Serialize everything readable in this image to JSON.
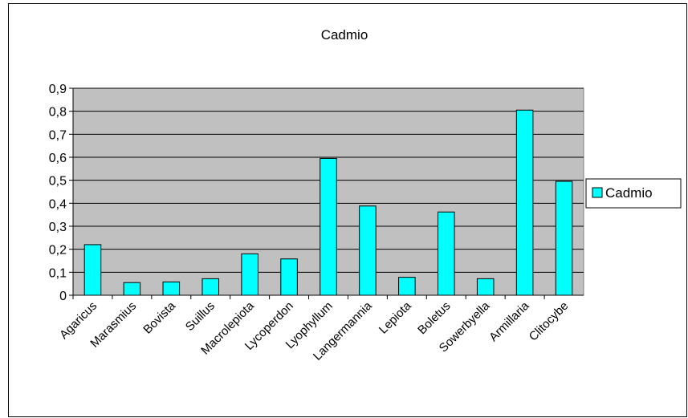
{
  "chart_data": {
    "type": "bar",
    "title": "Cadmio",
    "xlabel": "",
    "ylabel": "",
    "categories": [
      "Agaricus",
      "Marasmius",
      "Bovista",
      "Suillus",
      "Macrolepiota",
      "Lycoperdon",
      "Lyophyllum",
      "Langermannia",
      "Lepiota",
      "Boletus",
      "Sowerbyella",
      "Armillaria",
      "Clitocybe"
    ],
    "series": [
      {
        "name": "Cadmio",
        "values": [
          0.22,
          0.055,
          0.058,
          0.072,
          0.18,
          0.158,
          0.595,
          0.388,
          0.078,
          0.362,
          0.072,
          0.805,
          0.495
        ],
        "color": "#00FFFF"
      }
    ],
    "ylim": [
      0,
      0.9
    ],
    "yticks": [
      "0",
      "0,1",
      "0,2",
      "0,3",
      "0,4",
      "0,5",
      "0,6",
      "0,7",
      "0,8",
      "0,9"
    ],
    "grid": true,
    "plot_background": "#C0C0C0",
    "legend": {
      "position": "right"
    }
  }
}
